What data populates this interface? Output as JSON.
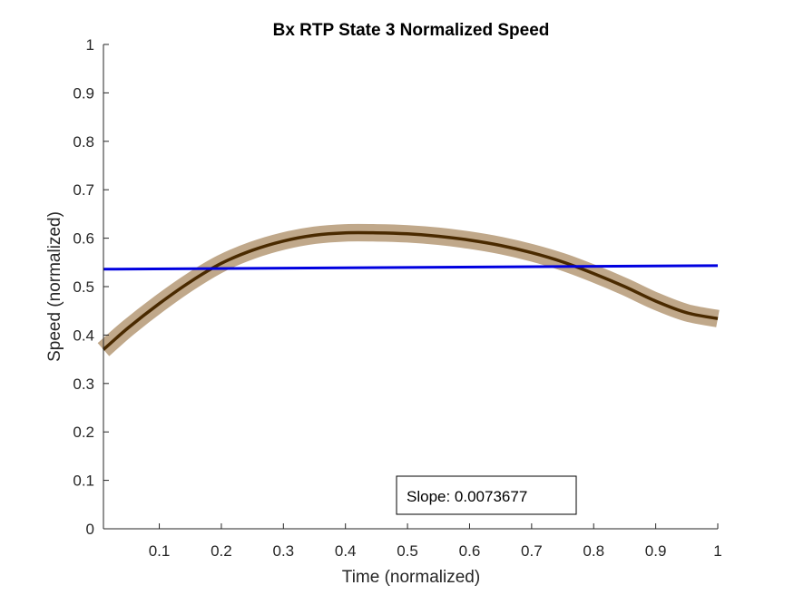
{
  "chart_data": {
    "type": "line",
    "title": "Bx  RTP State 3 Normalized Speed",
    "xlabel": "Time (normalized)",
    "ylabel": "Speed (normalized)",
    "xlim": [
      0.01,
      1.0
    ],
    "ylim": [
      0,
      1
    ],
    "xticks": [
      0.1,
      0.2,
      0.3,
      0.4,
      0.5,
      0.6,
      0.7,
      0.8,
      0.9,
      1
    ],
    "xtick_labels": [
      "0.1",
      "0.2",
      "0.3",
      "0.4",
      "0.5",
      "0.6",
      "0.7",
      "0.8",
      "0.9",
      "1"
    ],
    "yticks": [
      0,
      0.1,
      0.2,
      0.3,
      0.4,
      0.5,
      0.6,
      0.7,
      0.8,
      0.9,
      1
    ],
    "ytick_labels": [
      "0",
      "0.1",
      "0.2",
      "0.3",
      "0.4",
      "0.5",
      "0.6",
      "0.7",
      "0.8",
      "0.9",
      "1"
    ],
    "grid": false,
    "series": [
      {
        "kind": "mean-with-band",
        "color": "#4a2a00",
        "band_color": "#c0a88a",
        "band_halfwidth": 0.018,
        "x": [
          0.01,
          0.05,
          0.1,
          0.15,
          0.2,
          0.25,
          0.3,
          0.35,
          0.4,
          0.45,
          0.5,
          0.55,
          0.6,
          0.65,
          0.7,
          0.75,
          0.8,
          0.85,
          0.9,
          0.95,
          1.0
        ],
        "y": [
          0.37,
          0.415,
          0.465,
          0.51,
          0.548,
          0.575,
          0.594,
          0.606,
          0.611,
          0.611,
          0.609,
          0.604,
          0.596,
          0.585,
          0.57,
          0.551,
          0.527,
          0.5,
          0.47,
          0.446,
          0.434
        ]
      },
      {
        "kind": "fit-line",
        "color": "#0000e0",
        "x": [
          0.01,
          1.0
        ],
        "y": [
          0.536,
          0.5433
        ]
      }
    ],
    "annotation": {
      "text": "Slope: 0.0073677"
    }
  }
}
